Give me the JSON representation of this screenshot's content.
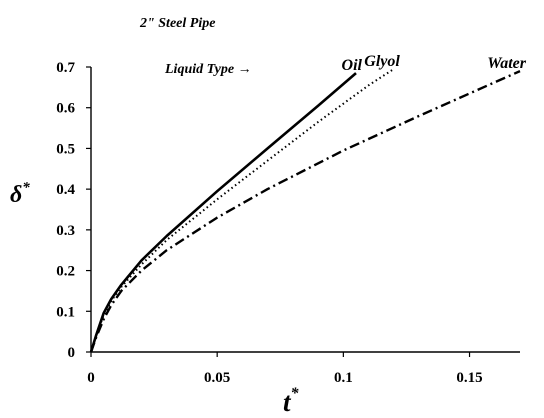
{
  "chart_data": {
    "type": "line",
    "title": "2\" Steel Pipe",
    "annotation": "Liquid Type",
    "xlabel": "t",
    "ylabel": "δ",
    "label_superscript": "*",
    "xlim": [
      0,
      0.17
    ],
    "ylim": [
      0,
      0.7
    ],
    "xticks": [
      0,
      0.05,
      0.1,
      0.15
    ],
    "xtick_labels": [
      "0",
      "0.05",
      "0.1",
      "0.15"
    ],
    "yticks": [
      0,
      0.1,
      0.2,
      0.3,
      0.4,
      0.5,
      0.6,
      0.7
    ],
    "ytick_labels": [
      "0",
      "0.1",
      "0.2",
      "0.3",
      "0.4",
      "0.5",
      "0.6",
      "0.7"
    ],
    "grid": false,
    "legend": "inline labels at line ends",
    "series": [
      {
        "name": "Oil",
        "style": "solid",
        "color": "#000000",
        "x": [
          0,
          0.002,
          0.005,
          0.008,
          0.012,
          0.02,
          0.03,
          0.05,
          0.07,
          0.09,
          0.105
        ],
        "y": [
          0,
          0.04,
          0.095,
          0.13,
          0.165,
          0.225,
          0.285,
          0.395,
          0.5,
          0.605,
          0.685
        ]
      },
      {
        "name": "Glyol",
        "style": "dotted",
        "color": "#000000",
        "x": [
          0,
          0.002,
          0.005,
          0.008,
          0.012,
          0.02,
          0.03,
          0.05,
          0.07,
          0.09,
          0.11,
          0.12
        ],
        "y": [
          0,
          0.04,
          0.09,
          0.125,
          0.16,
          0.215,
          0.275,
          0.375,
          0.47,
          0.565,
          0.655,
          0.695
        ]
      },
      {
        "name": "Water",
        "style": "dash-dot",
        "color": "#000000",
        "x": [
          0,
          0.002,
          0.005,
          0.008,
          0.012,
          0.02,
          0.03,
          0.05,
          0.07,
          0.1,
          0.13,
          0.15,
          0.17
        ],
        "y": [
          0,
          0.035,
          0.08,
          0.115,
          0.15,
          0.2,
          0.25,
          0.33,
          0.4,
          0.495,
          0.58,
          0.635,
          0.69
        ]
      }
    ]
  }
}
